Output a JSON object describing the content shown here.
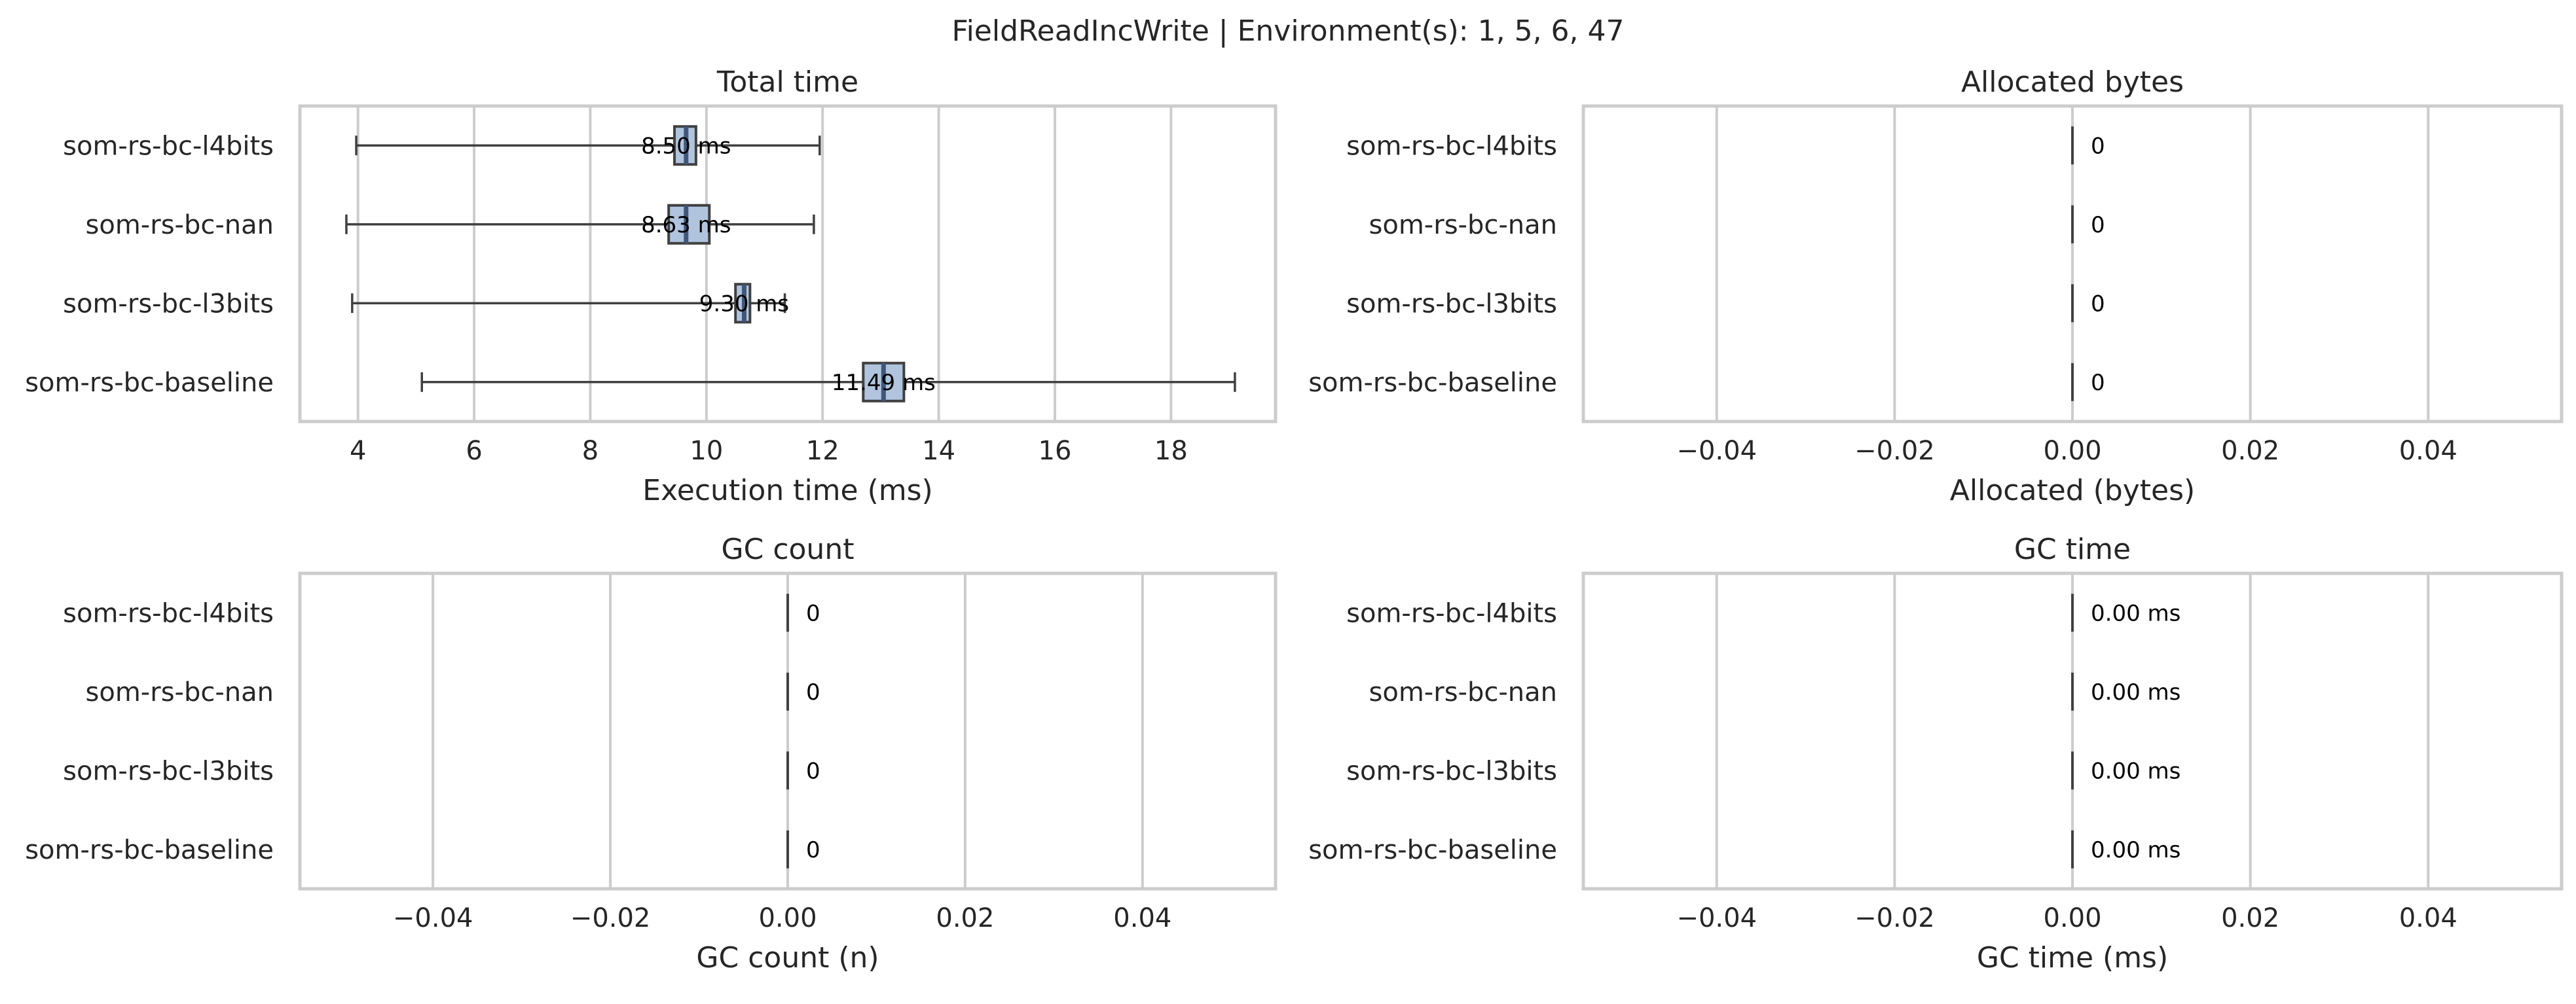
{
  "figure": {
    "suptitle": "FieldReadIncWrite | Environment(s): 1, 5, 6, 47"
  },
  "chart_data": [
    {
      "type": "box",
      "title": "Total time",
      "xlabel": "Execution time (ms)",
      "ylabel": "",
      "categories": [
        "som-rs-bc-l4bits",
        "som-rs-bc-nan",
        "som-rs-bc-l3bits",
        "som-rs-bc-baseline"
      ],
      "xlim": [
        3.0,
        19.8
      ],
      "xticks": [
        4,
        6,
        8,
        10,
        12,
        14,
        16,
        18
      ],
      "xtick_labels": [
        "4",
        "6",
        "8",
        "10",
        "12",
        "14",
        "16",
        "18"
      ],
      "grid": true,
      "boxes": [
        {
          "min": 3.97,
          "q1": 9.45,
          "median": 9.65,
          "q3": 9.82,
          "max": 11.95,
          "label": "8.50 ms"
        },
        {
          "min": 3.8,
          "q1": 9.35,
          "median": 9.65,
          "q3": 10.05,
          "max": 11.85,
          "label": "8.63 ms"
        },
        {
          "min": 3.9,
          "q1": 10.5,
          "median": 10.65,
          "q3": 10.75,
          "max": 11.35,
          "label": "9.30 ms"
        },
        {
          "min": 5.1,
          "q1": 12.7,
          "median": 13.05,
          "q3": 13.4,
          "max": 19.1,
          "label": "11.49 ms"
        }
      ]
    },
    {
      "type": "box",
      "title": "Allocated bytes",
      "xlabel": "Allocated (bytes)",
      "ylabel": "",
      "categories": [
        "som-rs-bc-l4bits",
        "som-rs-bc-nan",
        "som-rs-bc-l3bits",
        "som-rs-bc-baseline"
      ],
      "xlim": [
        -0.055,
        0.055
      ],
      "xticks": [
        -0.04,
        -0.02,
        0.0,
        0.02,
        0.04
      ],
      "xtick_labels": [
        "−0.04",
        "−0.02",
        "0.00",
        "0.02",
        "0.04"
      ],
      "grid": true,
      "boxes": [
        {
          "min": 0,
          "q1": 0,
          "median": 0,
          "q3": 0,
          "max": 0,
          "label": "0"
        },
        {
          "min": 0,
          "q1": 0,
          "median": 0,
          "q3": 0,
          "max": 0,
          "label": "0"
        },
        {
          "min": 0,
          "q1": 0,
          "median": 0,
          "q3": 0,
          "max": 0,
          "label": "0"
        },
        {
          "min": 0,
          "q1": 0,
          "median": 0,
          "q3": 0,
          "max": 0,
          "label": "0"
        }
      ]
    },
    {
      "type": "box",
      "title": "GC count",
      "xlabel": "GC count (n)",
      "ylabel": "",
      "categories": [
        "som-rs-bc-l4bits",
        "som-rs-bc-nan",
        "som-rs-bc-l3bits",
        "som-rs-bc-baseline"
      ],
      "xlim": [
        -0.055,
        0.055
      ],
      "xticks": [
        -0.04,
        -0.02,
        0.0,
        0.02,
        0.04
      ],
      "xtick_labels": [
        "−0.04",
        "−0.02",
        "0.00",
        "0.02",
        "0.04"
      ],
      "grid": true,
      "boxes": [
        {
          "min": 0,
          "q1": 0,
          "median": 0,
          "q3": 0,
          "max": 0,
          "label": "0"
        },
        {
          "min": 0,
          "q1": 0,
          "median": 0,
          "q3": 0,
          "max": 0,
          "label": "0"
        },
        {
          "min": 0,
          "q1": 0,
          "median": 0,
          "q3": 0,
          "max": 0,
          "label": "0"
        },
        {
          "min": 0,
          "q1": 0,
          "median": 0,
          "q3": 0,
          "max": 0,
          "label": "0"
        }
      ]
    },
    {
      "type": "box",
      "title": "GC time",
      "xlabel": "GC time (ms)",
      "ylabel": "",
      "categories": [
        "som-rs-bc-l4bits",
        "som-rs-bc-nan",
        "som-rs-bc-l3bits",
        "som-rs-bc-baseline"
      ],
      "xlim": [
        -0.055,
        0.055
      ],
      "xticks": [
        -0.04,
        -0.02,
        0.0,
        0.02,
        0.04
      ],
      "xtick_labels": [
        "−0.04",
        "−0.02",
        "0.00",
        "0.02",
        "0.04"
      ],
      "grid": true,
      "boxes": [
        {
          "min": 0,
          "q1": 0,
          "median": 0,
          "q3": 0,
          "max": 0,
          "label": "0.00 ms"
        },
        {
          "min": 0,
          "q1": 0,
          "median": 0,
          "q3": 0,
          "max": 0,
          "label": "0.00 ms"
        },
        {
          "min": 0,
          "q1": 0,
          "median": 0,
          "q3": 0,
          "max": 0,
          "label": "0.00 ms"
        },
        {
          "min": 0,
          "q1": 0,
          "median": 0,
          "q3": 0,
          "max": 0,
          "label": "0.00 ms"
        }
      ]
    }
  ]
}
